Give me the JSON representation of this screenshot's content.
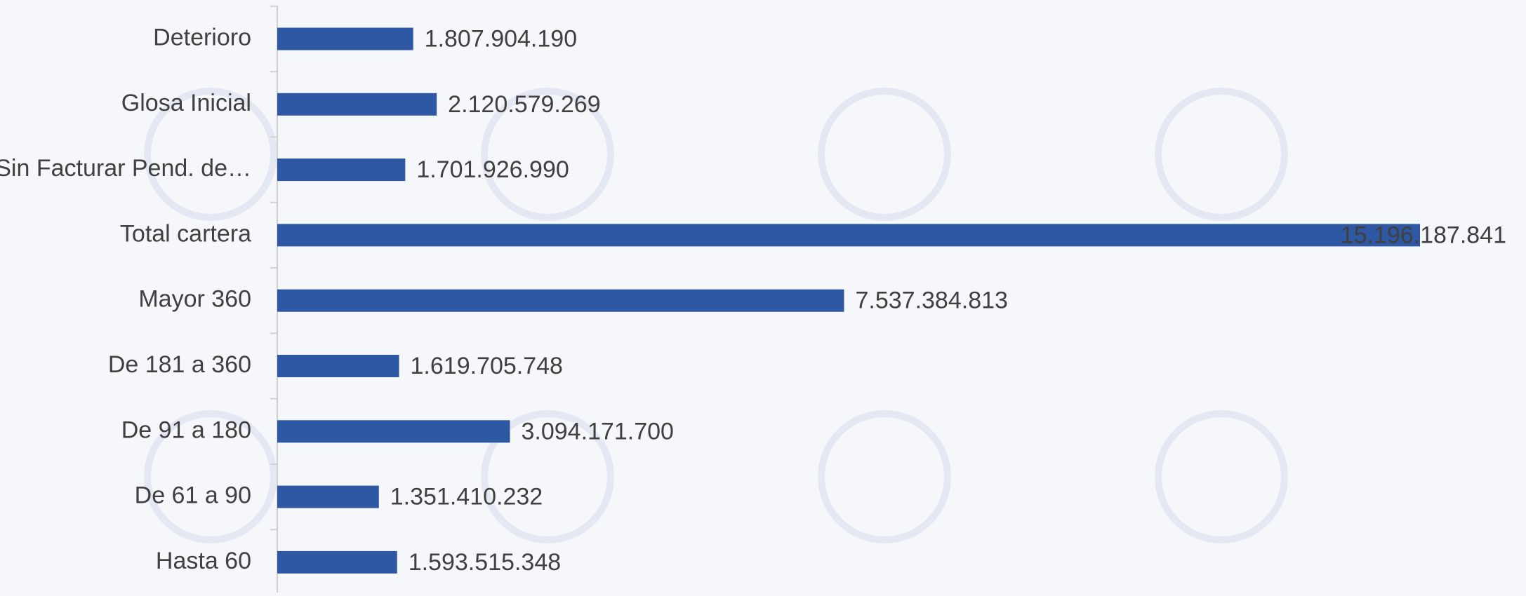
{
  "chart_data": {
    "type": "bar",
    "orientation": "horizontal",
    "categories": [
      "Deterioro",
      "Glosa Inicial",
      "Sin Facturar Pend. de…",
      "Total cartera",
      "Mayor 360",
      "De 181 a 360",
      "De 91 a 180",
      "De 61 a 90",
      "Hasta  60"
    ],
    "values": [
      1807904190,
      2120579269,
      1701926990,
      15196187841,
      7537384813,
      1619705748,
      3094171700,
      1351410232,
      1593515348
    ],
    "value_labels": [
      "1.807.904.190",
      "2.120.579.269",
      "1.701.926.990",
      "15.196.187.841",
      "7.537.384.813",
      "1.619.705.748",
      "3.094.171.700",
      "1.351.410.232",
      "1.593.515.348"
    ],
    "color": "#2f58a4"
  }
}
